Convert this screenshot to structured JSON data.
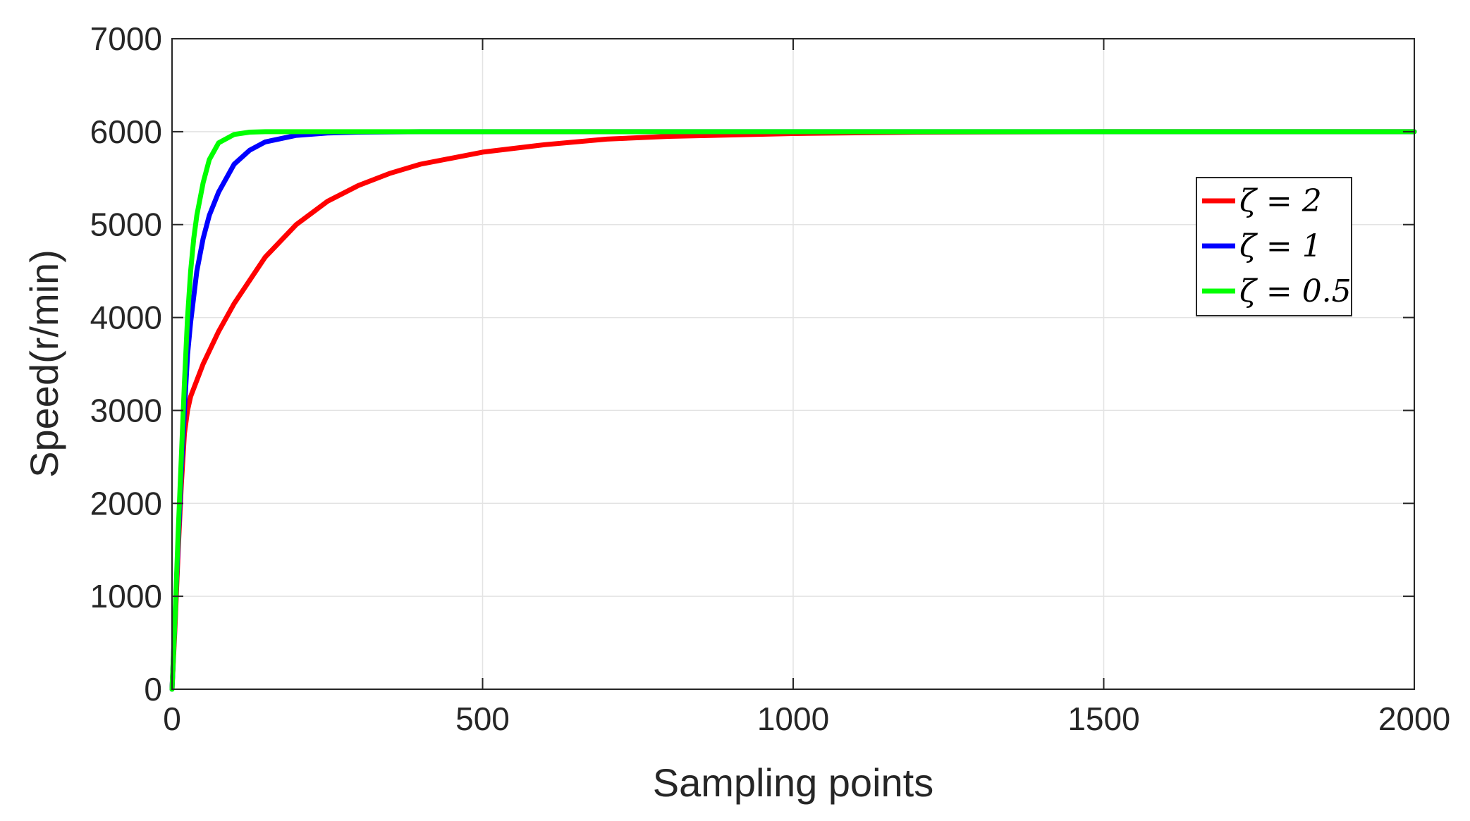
{
  "chart_data": {
    "type": "line",
    "xlabel": "Sampling points",
    "ylabel": "Speed(r/min)",
    "xlim": [
      0,
      2000
    ],
    "ylim": [
      0,
      7000
    ],
    "xticks": [
      0,
      500,
      1000,
      1500,
      2000
    ],
    "yticks": [
      0,
      1000,
      2000,
      3000,
      4000,
      5000,
      6000,
      7000
    ],
    "grid": true,
    "legend_position": "right",
    "series": [
      {
        "name": "ζ = 2",
        "color": "#ff0000",
        "x": [
          0,
          5,
          10,
          15,
          20,
          25,
          30,
          50,
          75,
          100,
          150,
          200,
          250,
          300,
          350,
          400,
          500,
          600,
          700,
          800,
          1000,
          1200,
          1500,
          2000
        ],
        "y": [
          0,
          700,
          1500,
          2200,
          2750,
          3000,
          3150,
          3500,
          3850,
          4150,
          4650,
          5000,
          5250,
          5420,
          5550,
          5650,
          5780,
          5860,
          5920,
          5950,
          5980,
          5995,
          6000,
          6000
        ]
      },
      {
        "name": "ζ = 1",
        "color": "#0000ff",
        "x": [
          0,
          5,
          10,
          15,
          20,
          25,
          30,
          40,
          50,
          60,
          75,
          100,
          125,
          150,
          200,
          250,
          300,
          400,
          600,
          1000,
          2000
        ],
        "y": [
          0,
          800,
          1600,
          2350,
          3000,
          3600,
          3950,
          4500,
          4850,
          5100,
          5350,
          5650,
          5800,
          5890,
          5960,
          5985,
          5995,
          6000,
          6000,
          6000,
          6000
        ]
      },
      {
        "name": "ζ = 0.5",
        "color": "#00ff00",
        "x": [
          0,
          5,
          10,
          15,
          20,
          25,
          30,
          35,
          40,
          50,
          60,
          75,
          100,
          125,
          150,
          200,
          300,
          500,
          1000,
          2000
        ],
        "y": [
          0,
          800,
          1700,
          2500,
          3300,
          4000,
          4500,
          4850,
          5100,
          5450,
          5700,
          5880,
          5970,
          5995,
          6000,
          6000,
          6000,
          6000,
          6000,
          6000
        ]
      }
    ]
  }
}
